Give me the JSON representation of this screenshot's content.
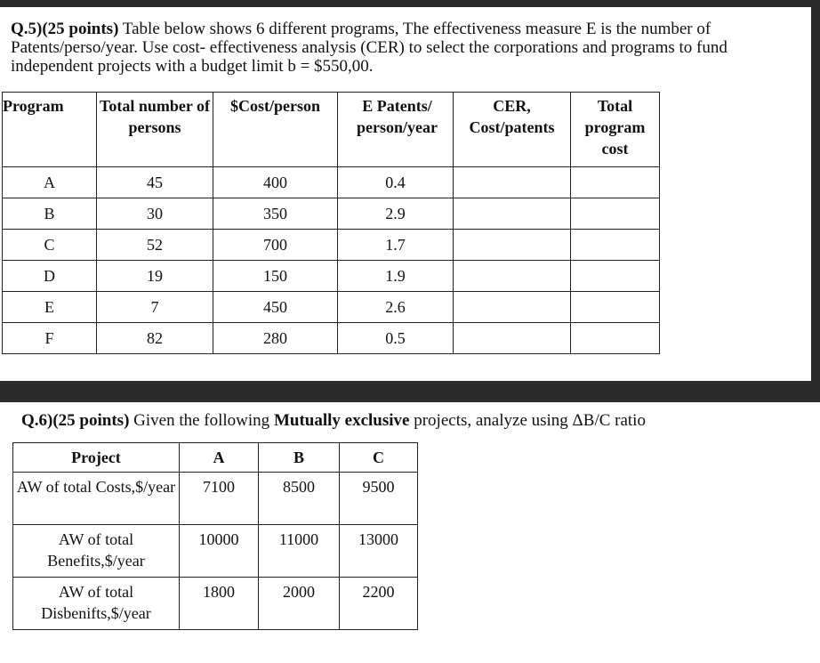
{
  "q5": {
    "label": "Q.5)(25 points)",
    "text": "Table below shows 6 different programs, The effectiveness measure E is the number of Patents/perso/year. Use cost- effectiveness analysis (CER) to select the corporations and programs to fund independent projects with a budget limit b = $550,00.",
    "table": {
      "header": [
        "Program",
        "Total number of persons",
        "$Cost/person",
        "E Patents/ person/year",
        "CER, Cost/patents",
        "Total program cost"
      ],
      "rows": [
        [
          "A",
          "45",
          "400",
          "0.4"
        ],
        [
          "B",
          "30",
          "350",
          "2.9"
        ],
        [
          "C",
          "52",
          "700",
          "1.7"
        ],
        [
          "D",
          "19",
          "150",
          "1.9"
        ],
        [
          "E",
          "7",
          "450",
          "2.6"
        ],
        [
          "F",
          "82",
          "280",
          "0.5"
        ]
      ]
    }
  },
  "q6": {
    "label": "Q.6)(25 points)",
    "text_1": "Given the following",
    "emphasis": "Mutually exclusive",
    "text_2": "projects, analyze  using ΔB/C ratio",
    "table": {
      "header": [
        "Project",
        "A",
        "B",
        "C"
      ],
      "rows": [
        [
          "AW of total Costs,$/year",
          "7100",
          "8500",
          "9500"
        ],
        [
          "AW of total Benefits,$/year",
          "10000",
          "11000",
          "13000"
        ],
        [
          "AW of total Disbenifts,$/year",
          "1800",
          "2000",
          "2200"
        ]
      ]
    }
  }
}
